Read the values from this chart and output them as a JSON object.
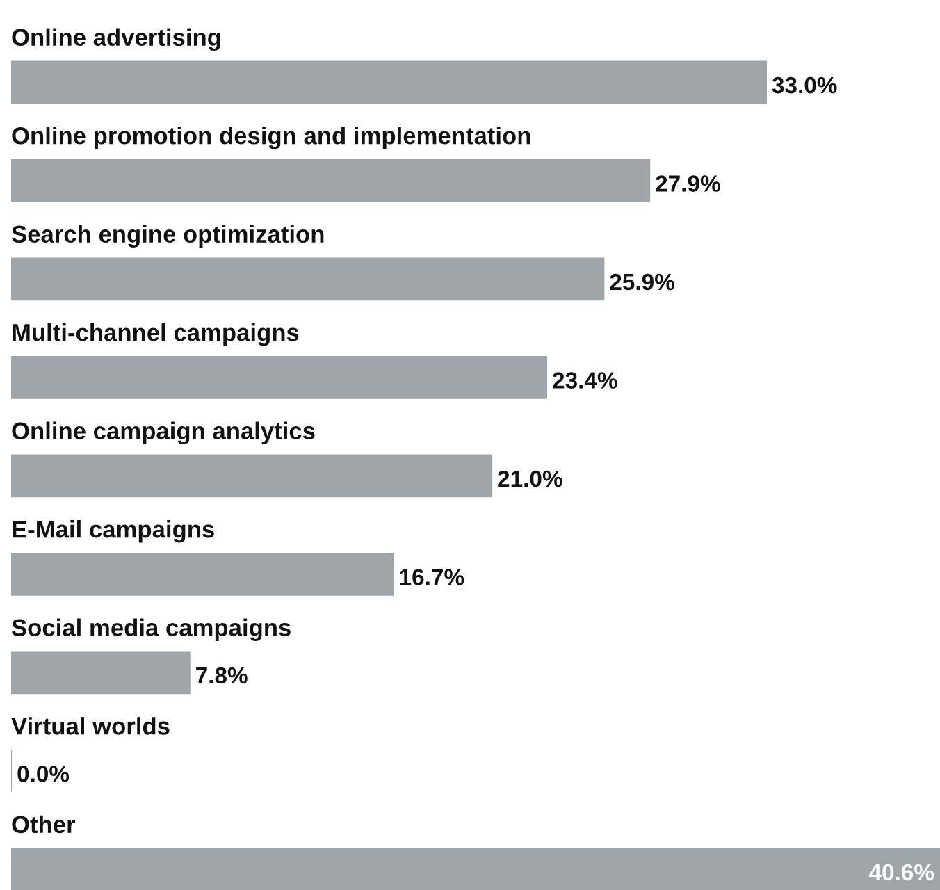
{
  "chart_data": {
    "type": "bar",
    "orientation": "horizontal",
    "categories": [
      "Online advertising",
      "Online promotion design and implementation",
      "Search engine optimization",
      "Multi-channel campaigns",
      "Online campaign analytics",
      "E-Mail campaigns",
      "Social media campaigns",
      "Virtual worlds",
      "Other"
    ],
    "values": [
      33.0,
      27.9,
      25.9,
      23.4,
      21.0,
      16.7,
      7.8,
      0.0,
      40.6
    ],
    "value_labels": [
      "33.0%",
      "27.9%",
      "25.9%",
      "23.4%",
      "21.0%",
      "16.7%",
      "7.8%",
      "0.0%",
      "40.6%"
    ],
    "color": "#a0a5aa"
  }
}
